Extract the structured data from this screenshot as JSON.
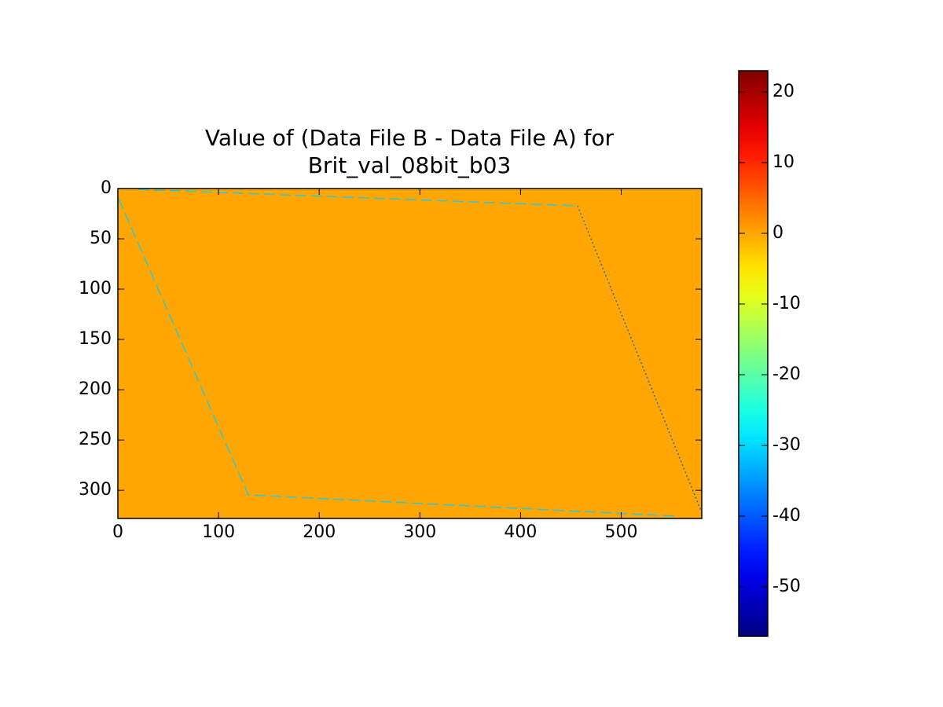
{
  "chart_data": {
    "type": "heatmap",
    "title": [
      "Value of (Data File B - Data File A) for",
      "Brit_val_08bit_b03"
    ],
    "xlim": [
      0,
      580
    ],
    "xticks": [
      0,
      100,
      200,
      300,
      400,
      500
    ],
    "ylim": [
      0,
      328
    ],
    "y_inverted": true,
    "yticks": [
      0,
      50,
      100,
      150,
      200,
      250,
      300
    ],
    "colormap": "jet",
    "background_value": 0,
    "clim": [
      -57,
      23
    ],
    "cticks": [
      -50,
      -40,
      -30,
      -20,
      -10,
      0,
      10,
      20
    ]
  }
}
